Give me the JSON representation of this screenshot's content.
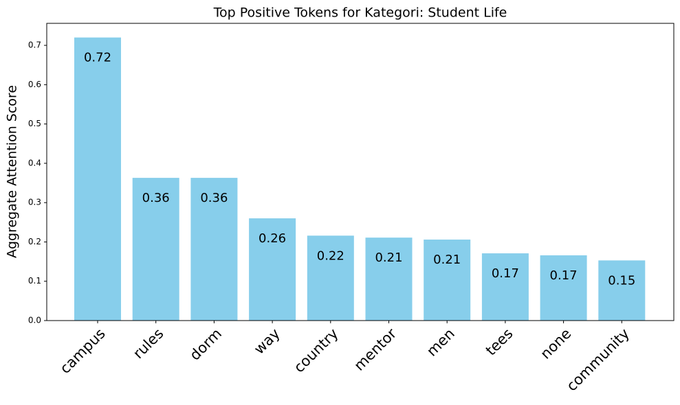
{
  "chart_data": {
    "type": "bar",
    "title": "Top Positive Tokens for Kategori: Student Life",
    "y_label": "Aggregate Attention Score",
    "categories": [
      "campus",
      "rules",
      "dorm",
      "way",
      "country",
      "mentor",
      "men",
      "tees",
      "none",
      "community"
    ],
    "values": [
      0.72,
      0.363,
      0.363,
      0.26,
      0.216,
      0.211,
      0.206,
      0.171,
      0.166,
      0.153
    ],
    "value_labels": [
      "0.72",
      "0.36",
      "0.36",
      "0.26",
      "0.22",
      "0.21",
      "0.21",
      "0.17",
      "0.17",
      "0.15"
    ],
    "color": "#87ceeb",
    "ylim": [
      0,
      0.756
    ],
    "yticks": [
      {
        "value": 0,
        "label": "0.0"
      },
      0.1,
      0.2,
      0.3,
      0.4,
      0.5,
      0.6,
      0.7
    ],
    "grid": false
  }
}
